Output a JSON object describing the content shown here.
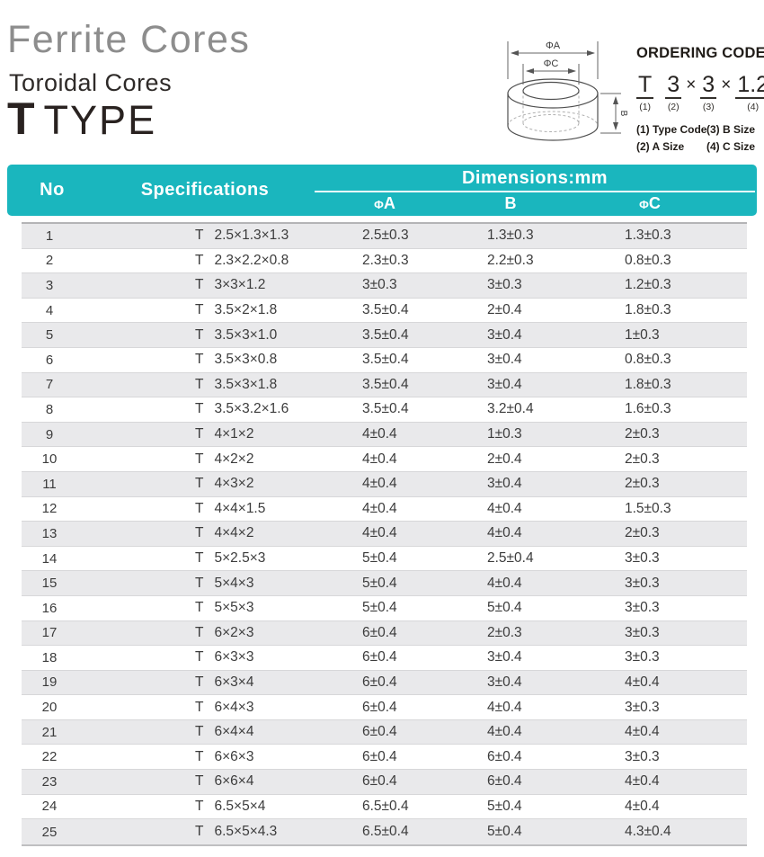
{
  "header": {
    "title": "Ferrite Cores",
    "subtitle": "Toroidal Cores",
    "type_prefix": "T",
    "type_label": "TYPE"
  },
  "diagram": {
    "phi_a": "ΦA",
    "phi_c": "ΦC",
    "b": "B"
  },
  "ordering": {
    "title": "ORDERING CODE",
    "code_parts": [
      {
        "text": "T",
        "sub": "(1)",
        "underline": true
      },
      {
        "text": "3",
        "sub": "(2)",
        "underline": true
      },
      {
        "text": "×",
        "sub": "",
        "underline": false
      },
      {
        "text": "3",
        "sub": "(3)",
        "underline": true
      },
      {
        "text": "×",
        "sub": "",
        "underline": false
      },
      {
        "text": "1.2",
        "sub": "(4)",
        "underline": true
      }
    ],
    "legend": [
      [
        "(1) Type Code",
        "(3) B Size"
      ],
      [
        "(2) A Size",
        "(4) C Size"
      ]
    ]
  },
  "table": {
    "columns": {
      "no": "No",
      "spec": "Specifications",
      "dims": "Dimensions:mm",
      "a": "ΦA",
      "b": "B",
      "c": "ΦC"
    },
    "rows": [
      [
        "1",
        "T 2.5×1.3×1.3",
        "2.5±0.3",
        "1.3±0.3",
        "1.3±0.3"
      ],
      [
        "2",
        "T 2.3×2.2×0.8",
        "2.3±0.3",
        "2.2±0.3",
        "0.8±0.3"
      ],
      [
        "3",
        "T 3×3×1.2",
        "3±0.3",
        "3±0.3",
        "1.2±0.3"
      ],
      [
        "4",
        "T 3.5×2×1.8",
        "3.5±0.4",
        "2±0.4",
        "1.8±0.3"
      ],
      [
        "5",
        "T 3.5×3×1.0",
        "3.5±0.4",
        "3±0.4",
        "1±0.3"
      ],
      [
        "6",
        "T 3.5×3×0.8",
        "3.5±0.4",
        "3±0.4",
        "0.8±0.3"
      ],
      [
        "7",
        "T 3.5×3×1.8",
        "3.5±0.4",
        "3±0.4",
        "1.8±0.3"
      ],
      [
        "8",
        "T 3.5×3.2×1.6",
        "3.5±0.4",
        "3.2±0.4",
        "1.6±0.3"
      ],
      [
        "9",
        "T 4×1×2",
        "4±0.4",
        "1±0.3",
        "2±0.3"
      ],
      [
        "10",
        "T 4×2×2",
        "4±0.4",
        "2±0.4",
        "2±0.3"
      ],
      [
        "11",
        "T 4×3×2",
        "4±0.4",
        "3±0.4",
        "2±0.3"
      ],
      [
        "12",
        "T 4×4×1.5",
        "4±0.4",
        "4±0.4",
        "1.5±0.3"
      ],
      [
        "13",
        "T 4×4×2",
        "4±0.4",
        "4±0.4",
        "2±0.3"
      ],
      [
        "14",
        "T 5×2.5×3",
        "5±0.4",
        "2.5±0.4",
        "3±0.3"
      ],
      [
        "15",
        "T 5×4×3",
        "5±0.4",
        "4±0.4",
        "3±0.3"
      ],
      [
        "16",
        "T 5×5×3",
        "5±0.4",
        "5±0.4",
        "3±0.3"
      ],
      [
        "17",
        "T 6×2×3",
        "6±0.4",
        "2±0.3",
        "3±0.3"
      ],
      [
        "18",
        "T 6×3×3",
        "6±0.4",
        "3±0.4",
        "3±0.3"
      ],
      [
        "19",
        "T 6×3×4",
        "6±0.4",
        "3±0.4",
        "4±0.4"
      ],
      [
        "20",
        "T 6×4×3",
        "6±0.4",
        "4±0.4",
        "3±0.3"
      ],
      [
        "21",
        "T 6×4×4",
        "6±0.4",
        "4±0.4",
        "4±0.4"
      ],
      [
        "22",
        "T 6×6×3",
        "6±0.4",
        "6±0.4",
        "3±0.3"
      ],
      [
        "23",
        "T 6×6×4",
        "6±0.4",
        "6±0.4",
        "4±0.4"
      ],
      [
        "24",
        "T 6.5×5×4",
        "6.5±0.4",
        "5±0.4",
        "4±0.4"
      ],
      [
        "25",
        "T 6.5×5×4.3",
        "6.5±0.4",
        "5±0.4",
        "4.3±0.4"
      ]
    ]
  },
  "colors": {
    "teal": "#1ab6be",
    "row_alt": "#e9e9eb"
  }
}
